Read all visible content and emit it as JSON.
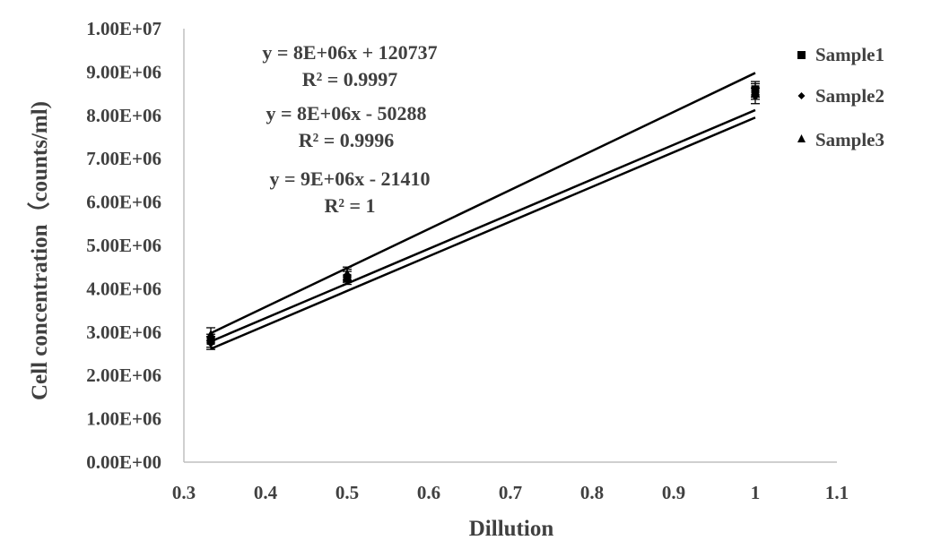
{
  "chart_data": {
    "type": "scatter",
    "xlabel": "Dillution",
    "ylabel": "Cell concentration（counts/ml)",
    "xlim": [
      0.3,
      1.1
    ],
    "ylim": [
      0,
      10000000
    ],
    "x_ticks": [
      "0.3",
      "0.4",
      "0.5",
      "0.6",
      "0.7",
      "0.8",
      "0.9",
      "1",
      "1.1"
    ],
    "y_ticks": [
      "0.00E+00",
      "1.00E+06",
      "2.00E+06",
      "3.00E+06",
      "4.00E+06",
      "5.00E+06",
      "6.00E+06",
      "7.00E+06",
      "8.00E+06",
      "9.00E+06",
      "1.00E+07"
    ],
    "grid": false,
    "legend_position": "right",
    "series": [
      {
        "name": "Sample1",
        "marker": "square",
        "x": [
          0.333,
          0.5,
          1.0
        ],
        "y": [
          2800000,
          4250000,
          8600000
        ],
        "error": [
          150000,
          150000,
          180000
        ],
        "trendline": {
          "slope": 8000000,
          "intercept": 120737,
          "equation": "y = 8E+06x + 120737",
          "r2": "R² = 0.9997"
        }
      },
      {
        "name": "Sample2",
        "marker": "diamond",
        "x": [
          0.333,
          0.5,
          1.0
        ],
        "y": [
          2750000,
          4300000,
          8450000
        ],
        "error": [
          150000,
          150000,
          180000
        ],
        "trendline": {
          "slope": 8000000,
          "intercept": -50288,
          "equation": "y = 8E+06x - 50288",
          "r2": "R² = 0.9996"
        }
      },
      {
        "name": "Sample3",
        "marker": "triangle",
        "x": [
          0.333,
          0.5,
          1.0
        ],
        "y": [
          2950000,
          4350000,
          8550000
        ],
        "error": [
          150000,
          150000,
          180000
        ],
        "trendline": {
          "slope": 9000000,
          "intercept": -21410,
          "equation": "y = 9E+06x - 21410",
          "r2": "R² = 1"
        }
      }
    ],
    "colors": {
      "series": "#000000",
      "axis": "#bfbfbf",
      "text": "#404040"
    }
  }
}
